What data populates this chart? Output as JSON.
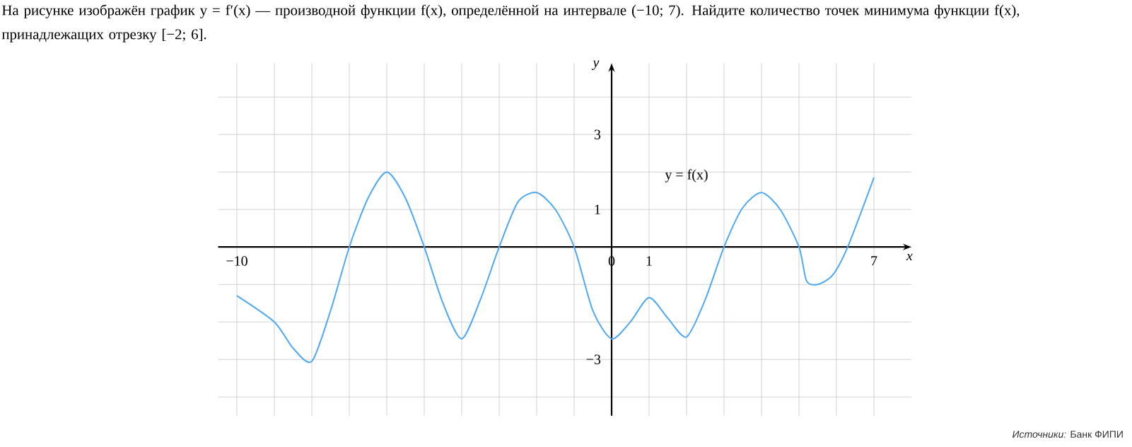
{
  "chart_data": {
    "type": "line",
    "title": "На рисунке изображён график y = f′(x) — производной функции f(x), определённой на интервале (−10; 7). Найдите количество точек минимума функции f(x), принадлежащих отрезку [−2; 6].",
    "xlabel": "x",
    "ylabel": "y",
    "annotations": [
      "*Источники:* Банк ФИПИ",
      "y = f(x)"
    ],
    "x": [
      -10,
      -9,
      -8.5,
      -8,
      -7.5,
      -7,
      -6.5,
      -6,
      -5.5,
      -5,
      -4.5,
      -4,
      -3.5,
      -3,
      -2.5,
      -2,
      -1.5,
      -1,
      -0.5,
      0,
      0.5,
      1,
      1.5,
      2,
      2.5,
      3,
      3.5,
      4,
      4.5,
      5,
      5.2,
      5.5,
      5.9,
      6.3,
      7
    ],
    "series": [
      {
        "color": "#4ea8f2",
        "values": [
          -1.3,
          -2,
          -2.7,
          -3.05,
          -1.7,
          0,
          1.3,
          2,
          1.3,
          0,
          -1.5,
          -2.45,
          -1.4,
          0,
          1.2,
          1.45,
          1.0,
          0,
          -1.7,
          -2.45,
          -2.0,
          -1.35,
          -1.9,
          -2.4,
          -1.4,
          0,
          1.05,
          1.45,
          1.0,
          0,
          -0.9,
          -1.0,
          -0.75,
          0,
          1.85
        ]
      }
    ],
    "xlim": [
      -10.5,
      8
    ],
    "ylim": [
      -4.5,
      4.9
    ],
    "xticks": [
      {
        "value": -10,
        "label": "−10"
      },
      {
        "value": -9,
        "label": null
      },
      {
        "value": -8,
        "label": null
      },
      {
        "value": -7,
        "label": null
      },
      {
        "value": -6,
        "label": null
      },
      {
        "value": -5,
        "label": null
      },
      {
        "value": -4,
        "label": null
      },
      {
        "value": -3,
        "label": null
      },
      {
        "value": -2,
        "label": null
      },
      {
        "value": -1,
        "label": null
      },
      0,
      1,
      {
        "value": 2,
        "label": null
      },
      {
        "value": 3,
        "label": null
      },
      {
        "value": 4,
        "label": null
      },
      {
        "value": 5,
        "label": null
      },
      {
        "value": 6,
        "label": null
      },
      7
    ],
    "yticks": [
      {
        "value": -4,
        "label": null
      },
      {
        "value": -3,
        "label": "−3"
      },
      {
        "value": -2,
        "label": null
      },
      {
        "value": -1,
        "label": null
      },
      {
        "value": 0,
        "label": null
      },
      1,
      {
        "value": 2,
        "label": null
      },
      3,
      {
        "value": 4,
        "label": null
      }
    ],
    "grid": true
  }
}
